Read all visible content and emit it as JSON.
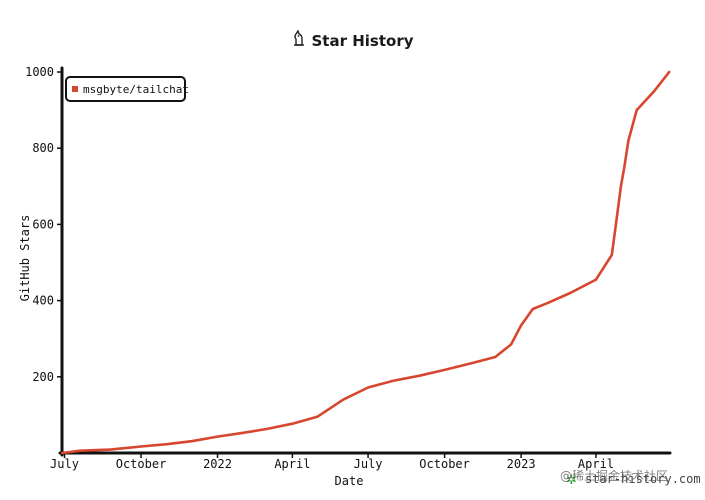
{
  "title": "Star History",
  "watermark": {
    "text": "star-history.com",
    "overlay_text": "@稀土掘金技术社区"
  },
  "chart_data": {
    "type": "line",
    "title": "Star History",
    "xlabel": "Date",
    "ylabel": "GitHub Stars",
    "ylim": [
      0,
      1000
    ],
    "xlim": [
      "2021-06-28",
      "2023-06-29"
    ],
    "y_ticks": [
      200,
      400,
      600,
      800,
      1000
    ],
    "x_ticks": [
      {
        "label": "July",
        "date": "2021-07-01"
      },
      {
        "label": "October",
        "date": "2021-10-01"
      },
      {
        "label": "2022",
        "date": "2022-01-01"
      },
      {
        "label": "April",
        "date": "2022-04-01"
      },
      {
        "label": "July",
        "date": "2022-07-01"
      },
      {
        "label": "October",
        "date": "2022-10-01"
      },
      {
        "label": "2023",
        "date": "2023-01-01"
      },
      {
        "label": "April",
        "date": "2023-04-01"
      }
    ],
    "legend": {
      "position": "top-left"
    },
    "grid": false,
    "series": [
      {
        "name": "msgbyte/tailchat",
        "color": "#d7462e",
        "points": [
          {
            "x": "2021-06-28",
            "y": 0
          },
          {
            "x": "2021-07-20",
            "y": 6
          },
          {
            "x": "2021-08-25",
            "y": 9
          },
          {
            "x": "2021-10-01",
            "y": 17
          },
          {
            "x": "2021-11-01",
            "y": 23
          },
          {
            "x": "2021-12-01",
            "y": 31
          },
          {
            "x": "2022-01-01",
            "y": 43
          },
          {
            "x": "2022-02-01",
            "y": 53
          },
          {
            "x": "2022-03-01",
            "y": 63
          },
          {
            "x": "2022-04-01",
            "y": 77
          },
          {
            "x": "2022-05-01",
            "y": 95
          },
          {
            "x": "2022-06-01",
            "y": 140
          },
          {
            "x": "2022-07-01",
            "y": 172
          },
          {
            "x": "2022-08-01",
            "y": 190
          },
          {
            "x": "2022-09-01",
            "y": 203
          },
          {
            "x": "2022-10-01",
            "y": 218
          },
          {
            "x": "2022-11-01",
            "y": 235
          },
          {
            "x": "2022-12-01",
            "y": 252
          },
          {
            "x": "2022-12-20",
            "y": 285
          },
          {
            "x": "2023-01-01",
            "y": 335
          },
          {
            "x": "2023-01-15",
            "y": 378
          },
          {
            "x": "2023-02-01",
            "y": 393
          },
          {
            "x": "2023-03-01",
            "y": 420
          },
          {
            "x": "2023-04-01",
            "y": 455
          },
          {
            "x": "2023-04-20",
            "y": 520
          },
          {
            "x": "2023-04-25",
            "y": 600
          },
          {
            "x": "2023-05-01",
            "y": 700
          },
          {
            "x": "2023-05-05",
            "y": 750
          },
          {
            "x": "2023-05-10",
            "y": 820
          },
          {
            "x": "2023-05-20",
            "y": 900
          },
          {
            "x": "2023-06-10",
            "y": 950
          },
          {
            "x": "2023-06-28",
            "y": 1000
          }
        ]
      }
    ]
  }
}
